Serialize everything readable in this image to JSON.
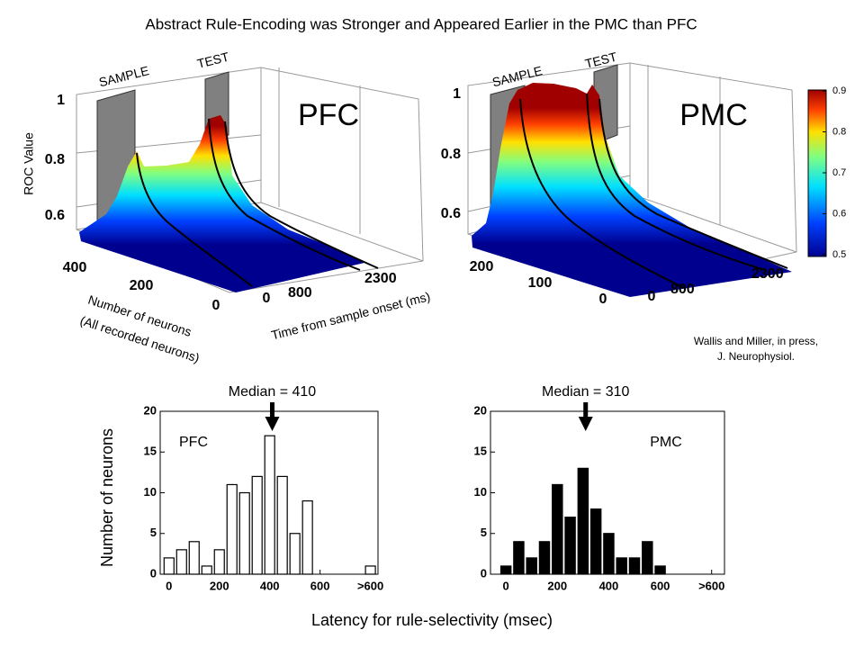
{
  "title": "Abstract Rule-Encoding was Stronger and Appeared Earlier in the PMC than PFC",
  "surface_plots": [
    {
      "label": "PFC",
      "zlabel": "ROC Value",
      "ylabel": [
        "Number of neurons",
        "(All recorded neurons)"
      ],
      "xlabel": "Time from sample onset (ms)",
      "epochs": [
        "SAMPLE",
        "TEST"
      ],
      "zticks": [
        1,
        0.8,
        0.6
      ],
      "yticks": [
        400,
        200,
        0
      ],
      "xticks": [
        0,
        800,
        2300
      ]
    },
    {
      "label": "PMC",
      "epochs": [
        "SAMPLE",
        "TEST"
      ],
      "zticks": [
        1,
        0.8,
        0.6
      ],
      "yticks": [
        200,
        100,
        0
      ],
      "xticks": [
        0,
        800,
        2300
      ]
    }
  ],
  "colorbar": {
    "ticks": [
      0.5,
      0.6,
      0.7,
      0.8,
      0.9
    ]
  },
  "citation": [
    "Wallis and Miller, in press,",
    "J. Neurophysiol."
  ],
  "histogram_labels": {
    "y": "Number of neurons",
    "x": "Latency for rule-selectivity (msec)"
  },
  "chart_data": [
    {
      "type": "histogram",
      "annotation": "PFC",
      "median": 410,
      "median_label": "Median = 410",
      "bins": [
        -25,
        25,
        75,
        125,
        175,
        225,
        275,
        325,
        375,
        425,
        475,
        525,
        575,
        625,
        675,
        725,
        775,
        825
      ],
      "counts": [
        2,
        3,
        4,
        1,
        3,
        11,
        10,
        12,
        17,
        12,
        5,
        9,
        0,
        0,
        0,
        0,
        1
      ],
      "color": "#ffffff",
      "edgecolor": "#000000",
      "xlim": [
        -35,
        830
      ],
      "xticks": [
        0,
        200,
        400,
        600,
        {
          "value": 800,
          "label": ">600"
        }
      ],
      "ylim": [
        0,
        20
      ],
      "yticks": [
        0,
        5,
        10,
        15,
        20
      ]
    },
    {
      "type": "histogram",
      "annotation": "PMC",
      "median": 310,
      "median_label": "Median = 310",
      "bins": [
        -25,
        25,
        75,
        125,
        175,
        225,
        275,
        325,
        375,
        425,
        475,
        525,
        575,
        625,
        675,
        725,
        775,
        825
      ],
      "counts": [
        1,
        4,
        2,
        4,
        11,
        7,
        13,
        8,
        5,
        2,
        2,
        4,
        1,
        0,
        0,
        0,
        0
      ],
      "color": "#000000",
      "edgecolor": "#000000",
      "xlim": [
        -60,
        850
      ],
      "xticks": [
        0,
        200,
        400,
        600,
        {
          "value": 800,
          "label": ">600"
        }
      ],
      "ylim": [
        0,
        20
      ],
      "yticks": [
        0,
        5,
        10,
        15,
        20
      ]
    }
  ]
}
